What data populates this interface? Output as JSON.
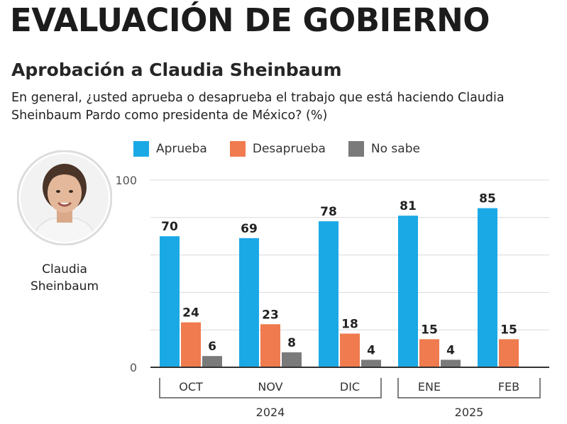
{
  "header": {
    "headline": "EVALUACIÓN DE GOBIERNO",
    "title": "Aprobación a Claudia Sheinbaum",
    "subtitle": "En general, ¿usted aprueba o desaprueba el trabajo que está haciendo Claudia Sheinbaum Pardo como presidenta de México? (%)"
  },
  "person": {
    "name_line1": "Claudia",
    "name_line2": "Sheinbaum"
  },
  "chart_data": {
    "type": "bar",
    "categories": [
      "OCT",
      "NOV",
      "DIC",
      "ENE",
      "FEB"
    ],
    "year_groups": [
      {
        "label": "2024",
        "categories": [
          "OCT",
          "NOV",
          "DIC"
        ]
      },
      {
        "label": "2025",
        "categories": [
          "ENE",
          "FEB"
        ]
      }
    ],
    "series": [
      {
        "name": "Aprueba",
        "color": "#1ba9e6",
        "values": [
          70,
          69,
          78,
          81,
          85
        ]
      },
      {
        "name": "Desaprueba",
        "color": "#ef7b4e",
        "values": [
          24,
          23,
          18,
          15,
          15
        ]
      },
      {
        "name": "No sabe",
        "color": "#7a7a7a",
        "values": [
          6,
          8,
          4,
          4,
          null
        ]
      }
    ],
    "ylim": [
      0,
      100
    ],
    "y_ticks": [
      "0",
      "100"
    ],
    "grid": true,
    "legend_position": "top"
  }
}
